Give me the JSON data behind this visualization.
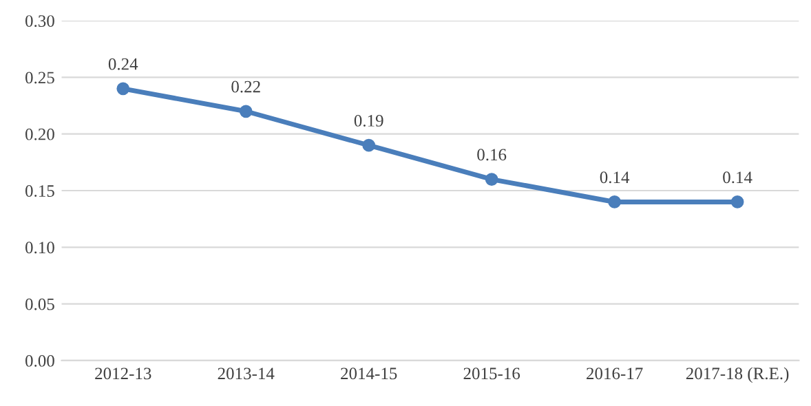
{
  "chart_data": {
    "type": "line",
    "categories": [
      "2012-13",
      "2013-14",
      "2014-15",
      "2015-16",
      "2016-17",
      "2017-18 (R.E.)"
    ],
    "series": [
      {
        "color": "#4a7ebb",
        "values": [
          0.24,
          0.22,
          0.19,
          0.16,
          0.14,
          0.14
        ]
      }
    ],
    "ylim": [
      0,
      0.3
    ],
    "yticks": [
      {
        "value": 0,
        "label": "0.00"
      },
      {
        "value": 0.05,
        "label": "0.05"
      },
      {
        "value": 0.1,
        "label": "0.10"
      },
      {
        "value": 0.15,
        "label": "0.15"
      },
      {
        "value": 0.2,
        "label": "0.20"
      },
      {
        "value": 0.25,
        "label": "0.25"
      },
      {
        "value": 0.3,
        "label": "0.30"
      }
    ],
    "grid": "y",
    "marker": "circle",
    "line_style": "solid",
    "data_labels": true
  }
}
